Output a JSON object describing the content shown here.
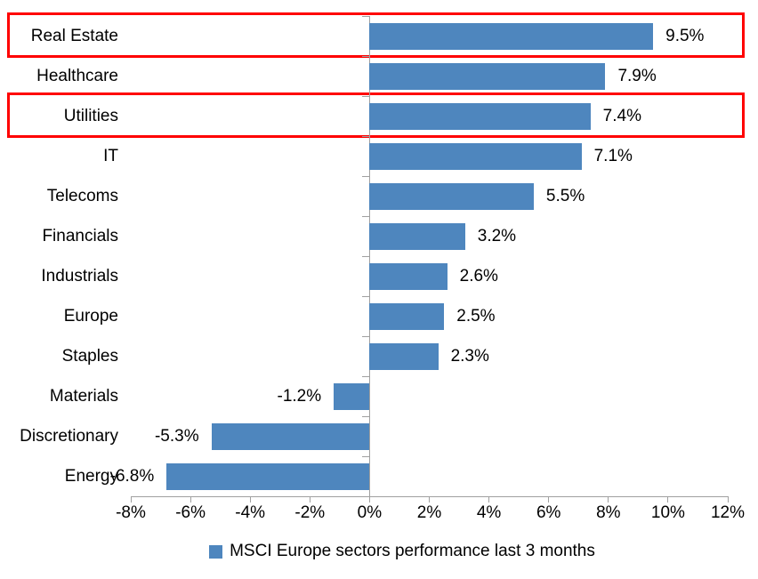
{
  "chart_data": {
    "type": "bar",
    "orientation": "horizontal",
    "title": "",
    "xlabel": "",
    "ylabel": "",
    "categories": [
      "Real Estate",
      "Healthcare",
      "Utilities",
      "IT",
      "Telecoms",
      "Financials",
      "Industrials",
      "Europe",
      "Staples",
      "Materials",
      "Discretionary",
      "Energy"
    ],
    "values": [
      9.5,
      7.9,
      7.4,
      7.1,
      5.5,
      3.2,
      2.6,
      2.5,
      2.3,
      -1.2,
      -5.3,
      -6.8
    ],
    "value_labels": [
      "9.5%",
      "7.9%",
      "7.4%",
      "7.1%",
      "5.5%",
      "3.2%",
      "2.6%",
      "2.5%",
      "2.3%",
      "-1.2%",
      "-5.3%",
      "-6.8%"
    ],
    "xlim": [
      -8,
      12
    ],
    "x_tick_values": [
      -8,
      -6,
      -4,
      -2,
      0,
      2,
      4,
      6,
      8,
      10,
      12
    ],
    "x_tick_labels": [
      "-8%",
      "-6%",
      "-4%",
      "-2%",
      "0%",
      "2%",
      "4%",
      "6%",
      "8%",
      "10%",
      "12%"
    ],
    "grid": false,
    "bar_color": "#4e86be",
    "axis_color": "#a0a0a0",
    "text_color": "#000000",
    "highlight_color": "#ff0000",
    "highlighted_categories": [
      "Real Estate",
      "Utilities"
    ],
    "legend": {
      "position": "bottom",
      "marker_color": "#4e86be",
      "label": "MSCI Europe sectors performance last 3 months"
    }
  }
}
